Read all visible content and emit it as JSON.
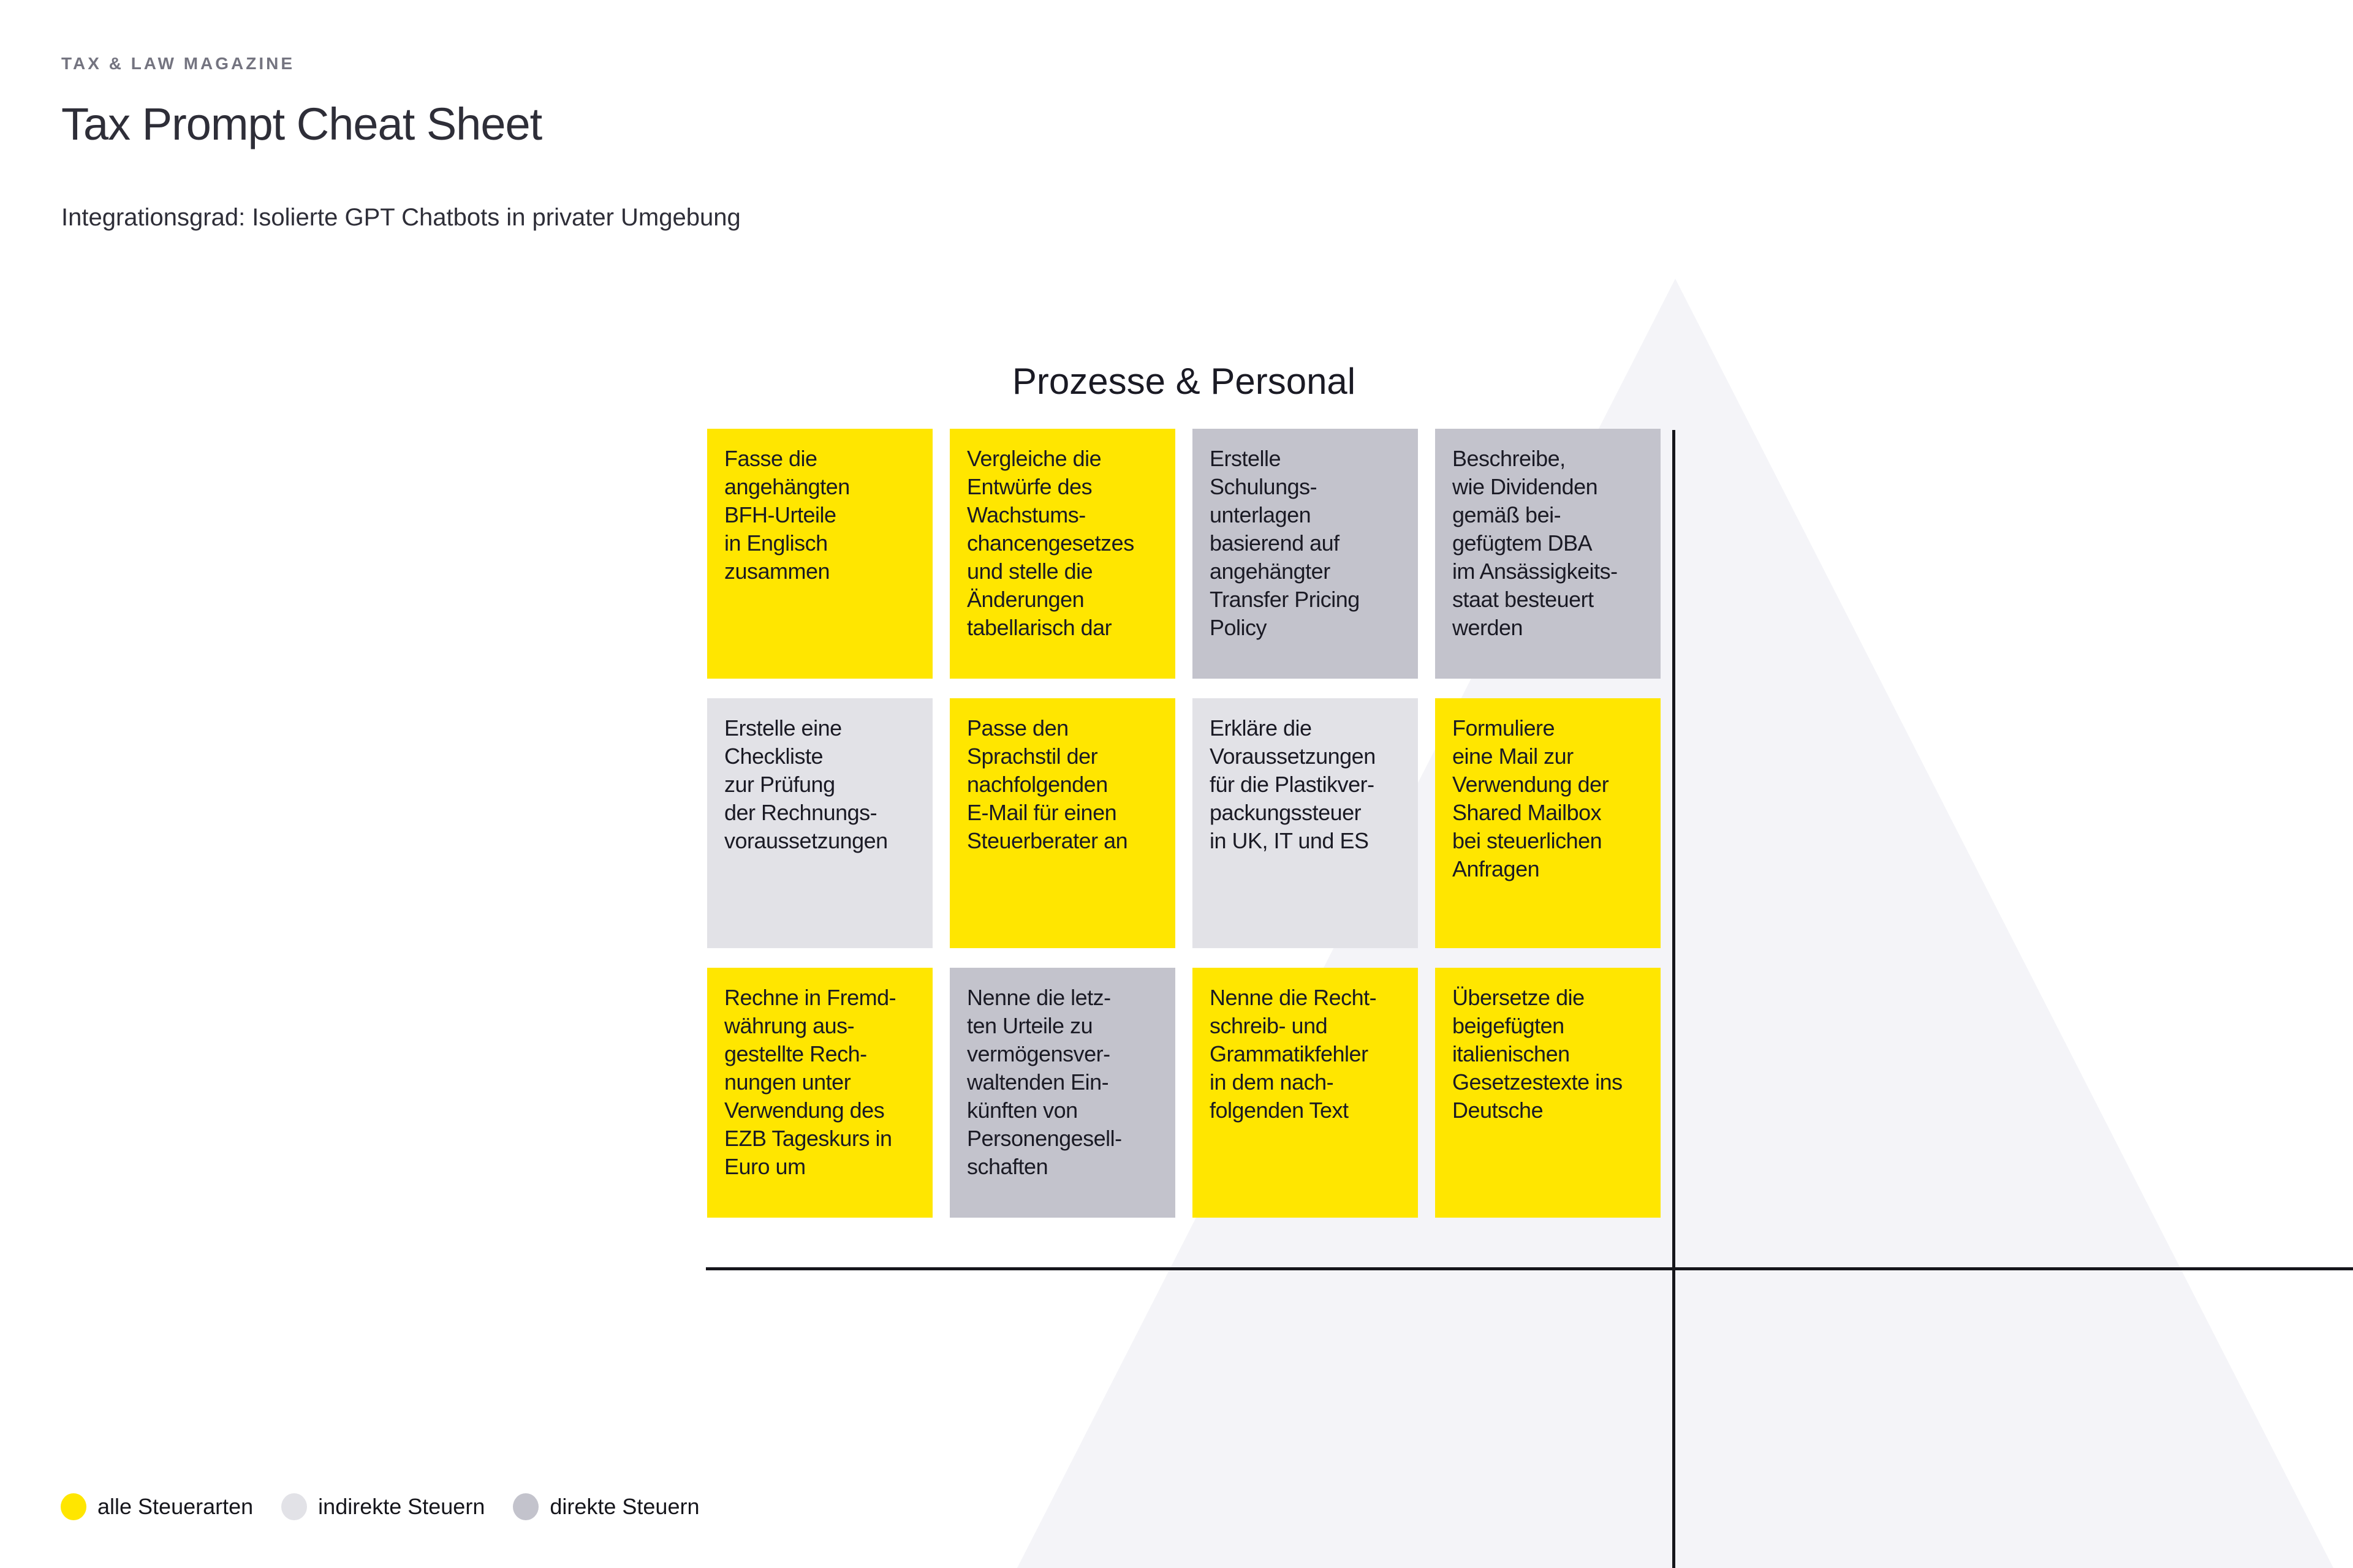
{
  "page": {
    "eyebrow": "TAX & LAW MAGAZINE",
    "title": "Tax Prompt Cheat Sheet",
    "subtitle": "Integrationsgrad: Isolierte GPT Chatbots in privater Umgebung"
  },
  "matrix": {
    "section_title": "Prozesse & Personal",
    "cards": [
      {
        "category": "alle",
        "text": "Fasse die\nangehängten\nBFH-Urteile\nin Englisch\nzusammen"
      },
      {
        "category": "alle",
        "text": "Vergleiche die\nEntwürfe des\nWachstums-\nchancengesetzes\nund stelle die\nÄnderungen\ntabellarisch dar"
      },
      {
        "category": "direkte",
        "text": "Erstelle\nSchulungs-\nunterlagen\nbasierend auf\nangehängter\nTransfer Pricing\nPolicy"
      },
      {
        "category": "direkte",
        "text": "Beschreibe,\nwie Dividenden\ngemäß bei-\ngefügtem DBA\nim Ansässigkeits-\nstaat besteuert\nwerden"
      },
      {
        "category": "indirekte",
        "text": "Erstelle eine\nCheckliste\nzur Prüfung\nder Rechnungs-\nvoraussetzungen"
      },
      {
        "category": "alle",
        "text": "Passe den\nSprachstil der\nnachfolgenden\nE-Mail für einen\nSteuerberater an"
      },
      {
        "category": "indirekte",
        "text": "Erkläre die\nVoraussetzungen\nfür die Plastikver-\npackungssteuer\nin UK, IT und ES"
      },
      {
        "category": "alle",
        "text": "Formuliere\neine Mail zur\nVerwendung der\nShared Mailbox\nbei steuerlichen\nAnfragen"
      },
      {
        "category": "alle",
        "text": "Rechne in Fremd-\nwährung aus-\ngestellte Rech-\nnungen unter\nVerwendung des\nEZB Tageskurs in\nEuro um"
      },
      {
        "category": "direkte",
        "text": "Nenne die letz-\nten Urteile zu\nvermögensver-\nwaltenden Ein-\nkünften von\nPersonengesell-\nschaften"
      },
      {
        "category": "alle",
        "text": "Nenne die Recht-\nschreib- und\nGrammatikfehler\nin dem nach-\nfolgenden Text"
      },
      {
        "category": "alle",
        "text": "Übersetze die\nbeigefügten\nitalienischen\nGesetzestexte ins\nDeutsche"
      }
    ]
  },
  "legend": {
    "items": [
      {
        "label": "alle Steuerarten",
        "category": "alle"
      },
      {
        "label": "indirekte Steuern",
        "category": "indirekte"
      },
      {
        "label": "direkte Steuern",
        "category": "direkte"
      }
    ]
  },
  "colors": {
    "alle": "#FFE600",
    "indirekte": "#E2E2E7",
    "direkte": "#C3C3CC",
    "triangle": "#F4F4F8",
    "axis": "#16161C",
    "title_text": "#2E2E38",
    "eyebrow_text": "#747480",
    "card_text": "#1A1A24"
  }
}
